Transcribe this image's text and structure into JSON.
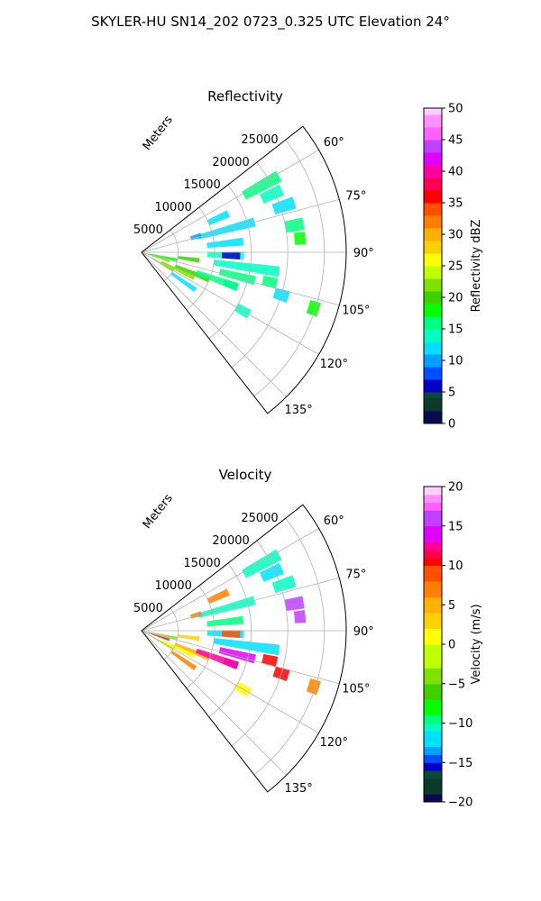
{
  "figure": {
    "title": "SKYLER-HU  SN14_202  0723_0.325 UTC Elevation 24°"
  },
  "colors": {
    "grid": "#b0b0b0",
    "axis": "#000000",
    "background": "#ffffff"
  },
  "chart_data": [
    {
      "type": "heatmap",
      "subtype": "polar-sector (PPI radar scan)",
      "title": "Reflectivity",
      "radial_label": "Meters",
      "r_ticks": [
        5000,
        10000,
        15000,
        20000,
        25000
      ],
      "r_tick_labels": [
        "5000",
        "10000",
        "15000",
        "20000",
        "25000"
      ],
      "rlim": [
        0,
        28000
      ],
      "theta_range_deg": [
        52,
        142
      ],
      "theta_ticks_deg": [
        60,
        75,
        90,
        105,
        120,
        135
      ],
      "theta_tick_labels": [
        "60°",
        "75°",
        "90°",
        "105°",
        "120°",
        "135°"
      ],
      "grid": true,
      "colorbar": {
        "label": "Reflectivity dBZ",
        "range": [
          0,
          50
        ],
        "ticks": [
          0,
          5,
          10,
          15,
          20,
          25,
          30,
          35,
          40,
          45,
          50
        ],
        "tick_labels": [
          "0",
          "5",
          "10",
          "15",
          "20",
          "25",
          "30",
          "35",
          "40",
          "45",
          "50"
        ],
        "colormap": [
          [
            0,
            "#0a0a50"
          ],
          [
            2,
            "#0a3a2a"
          ],
          [
            4,
            "#0a4a3a"
          ],
          [
            5,
            "#0000c8"
          ],
          [
            7,
            "#0050ff"
          ],
          [
            9,
            "#00a0ff"
          ],
          [
            11,
            "#00e0ff"
          ],
          [
            13,
            "#00ffc0"
          ],
          [
            15,
            "#00ff80"
          ],
          [
            17,
            "#00ff00"
          ],
          [
            19,
            "#40d000"
          ],
          [
            21,
            "#80e000"
          ],
          [
            23,
            "#c0ff00"
          ],
          [
            25,
            "#ffff00"
          ],
          [
            27,
            "#ffd000"
          ],
          [
            29,
            "#ffb000"
          ],
          [
            31,
            "#ff8000"
          ],
          [
            33,
            "#ff5000"
          ],
          [
            35,
            "#ff0000"
          ],
          [
            37,
            "#ff0050"
          ],
          [
            39,
            "#ff00a0"
          ],
          [
            41,
            "#e000ff"
          ],
          [
            43,
            "#c040ff"
          ],
          [
            45,
            "#ff60ff"
          ],
          [
            47,
            "#ff90ff"
          ],
          [
            49,
            "#ffd0ff"
          ],
          [
            50,
            "#ffe8ff"
          ]
        ]
      },
      "cells": [
        {
          "theta": 61,
          "r": [
            16000,
            21500
          ],
          "value": 16
        },
        {
          "theta": 66,
          "r": [
            18000,
            21000
          ],
          "value": 13
        },
        {
          "theta": 72,
          "r": [
            19000,
            22000
          ],
          "value": 12
        },
        {
          "theta": 80,
          "r": [
            20000,
            22500
          ],
          "value": 16
        },
        {
          "theta": 85,
          "r": [
            21000,
            22500
          ],
          "value": 17
        },
        {
          "theta": 66,
          "r": [
            10000,
            13000
          ],
          "value": 12
        },
        {
          "theta": 75,
          "r": [
            8000,
            16000
          ],
          "value": 12
        },
        {
          "theta": 84,
          "r": [
            9000,
            14000
          ],
          "value": 11
        },
        {
          "theta": 92,
          "r": [
            9000,
            14000
          ],
          "value": 13
        },
        {
          "theta": 98,
          "r": [
            10000,
            19000
          ],
          "value": 14
        },
        {
          "theta": 104,
          "r": [
            11000,
            16000
          ],
          "value": 15
        },
        {
          "theta": 110,
          "r": [
            12000,
            14000
          ],
          "value": 13
        },
        {
          "theta": 112,
          "r": [
            5000,
            10000
          ],
          "value": 19
        },
        {
          "theta": 116,
          "r": [
            3000,
            8000
          ],
          "value": 22
        },
        {
          "theta": 120,
          "r": [
            1500,
            5000
          ],
          "value": 21
        },
        {
          "theta": 110,
          "r": [
            8000,
            14000
          ],
          "value": 16
        },
        {
          "theta": 103,
          "r": [
            17000,
            19000
          ],
          "value": 15
        },
        {
          "theta": 107,
          "r": [
            19000,
            21000
          ],
          "value": 12
        },
        {
          "theta": 108,
          "r": [
            24000,
            25500
          ],
          "value": 17
        },
        {
          "theta": 120,
          "r": [
            15000,
            17000
          ],
          "value": 13
        },
        {
          "theta": 98,
          "r": [
            5000,
            8000
          ],
          "value": 20
        },
        {
          "theta": 102,
          "r": [
            1000,
            5000
          ],
          "value": 18
        },
        {
          "theta": 108,
          "r": [
            500,
            4000
          ],
          "value": 22
        },
        {
          "theta": 125,
          "r": [
            5000,
            9000
          ],
          "value": 12
        },
        {
          "theta": 92,
          "r": [
            11000,
            13500
          ],
          "value": 6
        },
        {
          "theta": 74,
          "r": [
            7000,
            8500
          ],
          "value": 9
        }
      ]
    },
    {
      "type": "heatmap",
      "subtype": "polar-sector (PPI radar scan)",
      "title": "Velocity",
      "radial_label": "Meters",
      "r_ticks": [
        5000,
        10000,
        15000,
        20000,
        25000
      ],
      "r_tick_labels": [
        "5000",
        "10000",
        "15000",
        "20000",
        "25000"
      ],
      "rlim": [
        0,
        28000
      ],
      "theta_range_deg": [
        52,
        142
      ],
      "theta_ticks_deg": [
        60,
        75,
        90,
        105,
        120,
        135
      ],
      "theta_tick_labels": [
        "60°",
        "75°",
        "90°",
        "105°",
        "120°",
        "135°"
      ],
      "grid": true,
      "colorbar": {
        "label": "Velocity (m/s)",
        "range": [
          -20,
          20
        ],
        "ticks": [
          -20,
          -15,
          -10,
          -5,
          0,
          5,
          10,
          15,
          20
        ],
        "tick_labels": [
          "−20",
          "−15",
          "−10",
          "−5",
          "0",
          "5",
          "10",
          "15",
          "20"
        ],
        "colormap": [
          [
            -20,
            "#0a0a50"
          ],
          [
            -19,
            "#0a3a2a"
          ],
          [
            -17,
            "#0a4a3a"
          ],
          [
            -16,
            "#0000c8"
          ],
          [
            -15,
            "#0050ff"
          ],
          [
            -14,
            "#00a0ff"
          ],
          [
            -13,
            "#00e0ff"
          ],
          [
            -11,
            "#00ffc0"
          ],
          [
            -10,
            "#00ff80"
          ],
          [
            -9,
            "#00ff00"
          ],
          [
            -7,
            "#40d000"
          ],
          [
            -5,
            "#80e000"
          ],
          [
            -3,
            "#c0ff00"
          ],
          [
            0,
            "#ffff00"
          ],
          [
            2,
            "#ffd000"
          ],
          [
            4,
            "#ffb000"
          ],
          [
            6,
            "#ff8000"
          ],
          [
            8,
            "#ff5000"
          ],
          [
            10,
            "#ff0000"
          ],
          [
            11,
            "#ff0050"
          ],
          [
            12,
            "#ff00a0"
          ],
          [
            13,
            "#e000ff"
          ],
          [
            15,
            "#c040ff"
          ],
          [
            17,
            "#ff60ff"
          ],
          [
            18,
            "#ff90ff"
          ],
          [
            19,
            "#ffd0ff"
          ],
          [
            20,
            "#ffe8ff"
          ]
        ]
      },
      "cells": [
        {
          "theta": 61,
          "r": [
            16000,
            21500
          ],
          "value": -11
        },
        {
          "theta": 66,
          "r": [
            18000,
            21000
          ],
          "value": -12
        },
        {
          "theta": 72,
          "r": [
            19000,
            22000
          ],
          "value": -11
        },
        {
          "theta": 80,
          "r": [
            20000,
            22500
          ],
          "value": 15
        },
        {
          "theta": 85,
          "r": [
            21000,
            22500
          ],
          "value": 16
        },
        {
          "theta": 66,
          "r": [
            10000,
            13000
          ],
          "value": 6
        },
        {
          "theta": 75,
          "r": [
            8000,
            16000
          ],
          "value": -11
        },
        {
          "theta": 84,
          "r": [
            9000,
            14000
          ],
          "value": -10
        },
        {
          "theta": 92,
          "r": [
            9000,
            14000
          ],
          "value": -12
        },
        {
          "theta": 98,
          "r": [
            10000,
            19000
          ],
          "value": -13
        },
        {
          "theta": 104,
          "r": [
            11000,
            16000
          ],
          "value": 14
        },
        {
          "theta": 110,
          "r": [
            12000,
            14000
          ],
          "value": 13
        },
        {
          "theta": 112,
          "r": [
            5000,
            10000
          ],
          "value": 4
        },
        {
          "theta": 116,
          "r": [
            3000,
            8000
          ],
          "value": 1
        },
        {
          "theta": 120,
          "r": [
            1500,
            5000
          ],
          "value": -3
        },
        {
          "theta": 110,
          "r": [
            8000,
            14000
          ],
          "value": 12
        },
        {
          "theta": 103,
          "r": [
            17000,
            19000
          ],
          "value": 10
        },
        {
          "theta": 107,
          "r": [
            19000,
            21000
          ],
          "value": 10
        },
        {
          "theta": 108,
          "r": [
            24000,
            25500
          ],
          "value": 6
        },
        {
          "theta": 120,
          "r": [
            15000,
            17000
          ],
          "value": 1
        },
        {
          "theta": 98,
          "r": [
            5000,
            8000
          ],
          "value": 2
        },
        {
          "theta": 102,
          "r": [
            1000,
            5000
          ],
          "value": -4
        },
        {
          "theta": 108,
          "r": [
            500,
            4000
          ],
          "value": 11
        },
        {
          "theta": 125,
          "r": [
            5000,
            9000
          ],
          "value": 7
        },
        {
          "theta": 92,
          "r": [
            11000,
            13500
          ],
          "value": 8
        },
        {
          "theta": 74,
          "r": [
            7000,
            8500
          ],
          "value": 7
        }
      ]
    }
  ]
}
